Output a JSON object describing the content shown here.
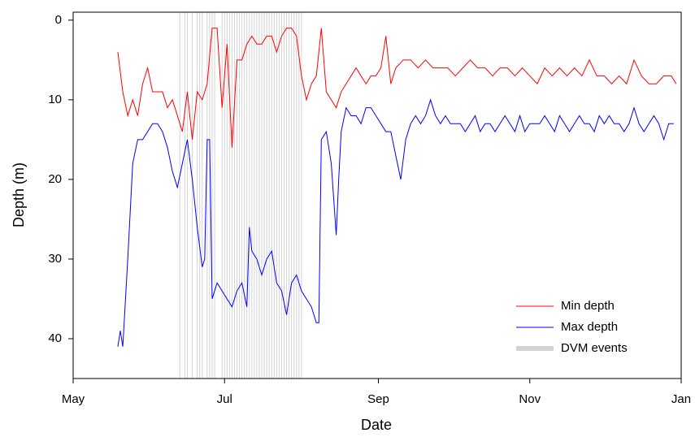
{
  "chart_data": {
    "type": "line",
    "x_label": "Date",
    "y_label": "Depth (m)",
    "xlim": [
      0,
      245
    ],
    "xticks": [
      {
        "value": 0,
        "label": "May"
      },
      {
        "value": 61,
        "label": "Jul"
      },
      {
        "value": 123,
        "label": "Sep"
      },
      {
        "value": 184,
        "label": "Nov"
      },
      {
        "value": 245,
        "label": "Jan"
      }
    ],
    "ylim": [
      -1,
      45
    ],
    "y_inverted": true,
    "yticks": [
      0,
      10,
      20,
      30,
      40
    ],
    "legend": "lower right",
    "series": [
      {
        "name": "Min depth",
        "color": "#ff0000",
        "x": [
          18,
          20,
          22,
          24,
          26,
          28,
          30,
          32,
          34,
          36,
          38,
          40,
          42,
          44,
          46,
          48,
          50,
          52,
          54,
          56,
          58,
          60,
          62,
          64,
          66,
          68,
          70,
          72,
          74,
          76,
          78,
          80,
          82,
          84,
          86,
          88,
          90,
          92,
          94,
          96,
          98,
          100,
          102,
          104,
          106,
          108,
          110,
          112,
          114,
          116,
          118,
          120,
          122,
          124,
          126,
          128,
          130,
          133,
          136,
          139,
          142,
          145,
          148,
          151,
          154,
          157,
          160,
          163,
          166,
          169,
          172,
          175,
          178,
          181,
          184,
          187,
          190,
          193,
          196,
          199,
          202,
          205,
          208,
          211,
          214,
          217,
          220,
          223,
          226,
          229,
          232,
          235,
          238,
          241,
          243
        ],
        "values": [
          4,
          9,
          12,
          10,
          12,
          8,
          6,
          9,
          9,
          9,
          11,
          10,
          12,
          14,
          9,
          15,
          9,
          10,
          8,
          1,
          1,
          11,
          3,
          16,
          5,
          5,
          3,
          2,
          3,
          3,
          2,
          2,
          4,
          2,
          1,
          1,
          2,
          7,
          10,
          8,
          7,
          1,
          9,
          10,
          11,
          9,
          8,
          7,
          6,
          7,
          8,
          7,
          7,
          6,
          2,
          8,
          6,
          5,
          5,
          6,
          5,
          6,
          6,
          6,
          7,
          6,
          5,
          6,
          6,
          7,
          6,
          6,
          7,
          6,
          7,
          8,
          6,
          7,
          6,
          7,
          6,
          7,
          5,
          7,
          7,
          8,
          7,
          8,
          5,
          7,
          8,
          8,
          7,
          7,
          8
        ]
      },
      {
        "name": "Max depth",
        "color": "#0000ff",
        "x": [
          18,
          19,
          20,
          22,
          24,
          26,
          28,
          30,
          32,
          34,
          36,
          38,
          40,
          42,
          44,
          46,
          48,
          50,
          52,
          53,
          54,
          55,
          56,
          58,
          60,
          62,
          64,
          66,
          68,
          70,
          71,
          72,
          74,
          76,
          78,
          80,
          82,
          84,
          86,
          88,
          90,
          92,
          94,
          96,
          98,
          99,
          100,
          102,
          104,
          106,
          107,
          108,
          110,
          112,
          114,
          116,
          118,
          120,
          122,
          124,
          126,
          128,
          130,
          132,
          134,
          136,
          138,
          140,
          142,
          144,
          146,
          148,
          150,
          152,
          154,
          156,
          158,
          160,
          162,
          164,
          166,
          168,
          170,
          172,
          174,
          176,
          178,
          180,
          182,
          184,
          186,
          188,
          190,
          192,
          194,
          196,
          198,
          200,
          202,
          204,
          206,
          208,
          210,
          212,
          214,
          216,
          218,
          220,
          222,
          224,
          226,
          228,
          230,
          232,
          234,
          236,
          238,
          240,
          242
        ],
        "values": [
          41,
          39,
          41,
          30,
          18,
          15,
          15,
          14,
          13,
          13,
          14,
          16,
          19,
          21,
          18,
          15,
          20,
          26,
          31,
          30,
          15,
          15,
          35,
          33,
          34,
          35,
          36,
          34,
          33,
          36,
          26,
          29,
          30,
          32,
          30,
          29,
          33,
          34,
          37,
          33,
          32,
          34,
          35,
          36,
          38,
          38,
          15,
          14,
          18,
          27,
          20,
          14,
          11,
          12,
          12,
          13,
          11,
          11,
          12,
          13,
          14,
          14,
          17,
          20,
          15,
          13,
          12,
          13,
          12,
          10,
          12,
          13,
          12,
          13,
          13,
          13,
          14,
          13,
          12,
          14,
          13,
          13,
          14,
          13,
          12,
          13,
          14,
          12,
          14,
          13,
          13,
          13,
          12,
          13,
          14,
          12,
          13,
          14,
          13,
          12,
          13,
          13,
          14,
          12,
          13,
          12,
          13,
          13,
          14,
          13,
          11,
          13,
          14,
          13,
          12,
          13,
          15,
          13,
          13
        ]
      }
    ],
    "dvm_events": {
      "name": "DVM events",
      "color": "#d3d3d3",
      "x": [
        43,
        45,
        46,
        48,
        50,
        51,
        52,
        54,
        55,
        56,
        57,
        60,
        61,
        62,
        63,
        64,
        65,
        66,
        67,
        68,
        69,
        70,
        71,
        72,
        73,
        74,
        75,
        76,
        77,
        78,
        79,
        80,
        81,
        82,
        83,
        84,
        85,
        86,
        87,
        88,
        89,
        90,
        91,
        92
      ]
    }
  }
}
